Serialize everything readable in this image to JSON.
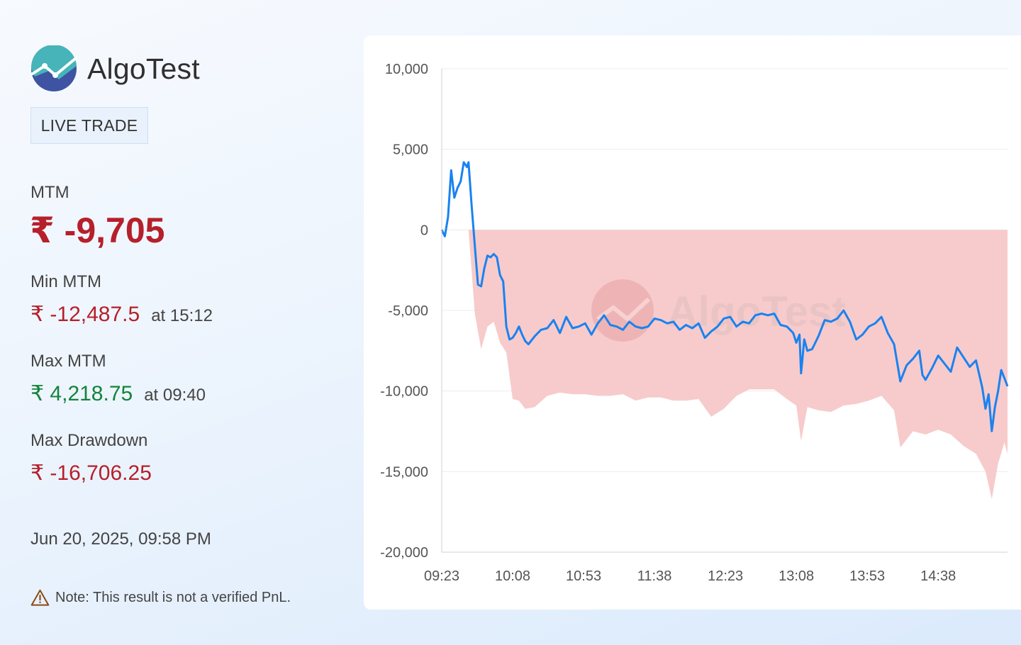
{
  "brand": {
    "name": "AlgoTest"
  },
  "badge": "LIVE TRADE",
  "stats": {
    "mtm_label": "MTM",
    "mtm_value": "₹ -9,705",
    "min_label": "Min MTM",
    "min_value": "₹ -12,487.5",
    "min_time": "at 15:12",
    "max_label": "Max MTM",
    "max_value": "₹ 4,218.75",
    "max_time": "at 09:40",
    "dd_label": "Max Drawdown",
    "dd_value": "₹ -16,706.25"
  },
  "timestamp": "Jun 20, 2025, 09:58 PM",
  "note": "Note: This result is not a verified PnL.",
  "colors": {
    "negative": "#b5202a",
    "positive": "#13843a",
    "mtm_line": "#1a82f0",
    "drawdown_fill": "#f6c5c5"
  },
  "chart_data": {
    "type": "line",
    "title": "",
    "xlabel": "",
    "ylabel": "",
    "x_ticks": [
      "09:23",
      "10:08",
      "10:53",
      "11:38",
      "12:23",
      "13:08",
      "13:53",
      "14:38"
    ],
    "y_ticks": [
      "10,000",
      "5,000",
      "0",
      "-5,000",
      "-10,000",
      "-15,000",
      "-20,000"
    ],
    "ylim": [
      -20000,
      10000
    ],
    "grid": true,
    "watermark": "AlgoTest",
    "series": [
      {
        "type": "line",
        "x": [
          "09:23",
          "09:25",
          "09:27",
          "09:29",
          "09:31",
          "09:33",
          "09:35",
          "09:37",
          "09:39",
          "09:40",
          "09:42",
          "09:44",
          "09:46",
          "09:48",
          "09:50",
          "09:52",
          "09:54",
          "09:56",
          "09:58",
          "10:00",
          "10:02",
          "10:04",
          "10:06",
          "10:08",
          "10:10",
          "10:12",
          "10:14",
          "10:16",
          "10:18",
          "10:22",
          "10:26",
          "10:30",
          "10:34",
          "10:38",
          "10:42",
          "10:46",
          "10:50",
          "10:54",
          "10:58",
          "11:02",
          "11:06",
          "11:10",
          "11:14",
          "11:18",
          "11:22",
          "11:26",
          "11:30",
          "11:34",
          "11:38",
          "11:42",
          "11:46",
          "11:50",
          "11:54",
          "11:58",
          "12:02",
          "12:06",
          "12:10",
          "12:14",
          "12:18",
          "12:22",
          "12:26",
          "12:30",
          "12:34",
          "12:38",
          "12:42",
          "12:46",
          "12:50",
          "12:54",
          "12:58",
          "13:02",
          "13:06",
          "13:08",
          "13:10",
          "13:11",
          "13:13",
          "13:15",
          "13:18",
          "13:22",
          "13:26",
          "13:30",
          "13:34",
          "13:38",
          "13:42",
          "13:46",
          "13:50",
          "13:54",
          "13:58",
          "14:02",
          "14:06",
          "14:10",
          "14:14",
          "14:18",
          "14:22",
          "14:26",
          "14:28",
          "14:30",
          "14:34",
          "14:38",
          "14:42",
          "14:46",
          "14:50",
          "14:54",
          "14:58",
          "15:02",
          "15:06",
          "15:08",
          "15:10",
          "15:12",
          "15:14",
          "15:16",
          "15:18",
          "15:20",
          "15:22"
        ],
        "values": [
          0,
          -400,
          800,
          3700,
          2000,
          2600,
          3000,
          4200,
          3900,
          4200,
          1500,
          -1000,
          -3400,
          -3500,
          -2400,
          -1600,
          -1700,
          -1500,
          -1700,
          -2800,
          -3200,
          -6000,
          -6800,
          -6700,
          -6400,
          -6000,
          -6500,
          -6900,
          -7100,
          -6600,
          -6200,
          -6100,
          -5600,
          -6400,
          -5400,
          -6100,
          -6000,
          -5800,
          -6500,
          -5800,
          -5300,
          -5900,
          -6000,
          -6200,
          -5700,
          -6000,
          -6100,
          -6000,
          -5500,
          -5600,
          -5800,
          -5700,
          -6200,
          -5900,
          -6100,
          -5800,
          -6700,
          -6300,
          -6000,
          -5500,
          -5400,
          -6000,
          -5700,
          -5800,
          -5300,
          -5200,
          -5300,
          -5200,
          -5900,
          -6000,
          -6400,
          -7000,
          -6500,
          -8900,
          -6800,
          -7500,
          -7400,
          -6600,
          -5600,
          -5700,
          -5500,
          -5000,
          -5700,
          -6800,
          -6500,
          -6000,
          -5800,
          -5400,
          -6400,
          -7100,
          -9400,
          -8400,
          -8000,
          -7500,
          -9000,
          -9300,
          -8600,
          -7800,
          -8300,
          -8800,
          -7300,
          -7900,
          -8500,
          -8100,
          -9800,
          -11100,
          -10200,
          -12487,
          -11000,
          -10000,
          -8700,
          -9200,
          -9705
        ]
      },
      {
        "type": "area",
        "name": "",
        "x": [
          "09:23",
          "09:40",
          "09:44",
          "09:48",
          "09:52",
          "09:56",
          "10:00",
          "10:04",
          "10:08",
          "10:12",
          "10:16",
          "10:22",
          "10:30",
          "10:38",
          "10:46",
          "10:54",
          "11:02",
          "11:10",
          "11:18",
          "11:26",
          "11:34",
          "11:42",
          "11:50",
          "11:58",
          "12:06",
          "12:14",
          "12:22",
          "12:30",
          "12:38",
          "12:46",
          "12:54",
          "13:02",
          "13:08",
          "13:11",
          "13:15",
          "13:22",
          "13:30",
          "13:38",
          "13:46",
          "13:54",
          "14:02",
          "14:10",
          "14:14",
          "14:22",
          "14:30",
          "14:38",
          "14:46",
          "14:54",
          "15:02",
          "15:08",
          "15:12",
          "15:16",
          "15:20",
          "15:22"
        ],
        "values": [
          0,
          0,
          -5200,
          -7400,
          -6000,
          -5700,
          -7000,
          -7600,
          -10500,
          -10600,
          -11100,
          -11000,
          -10300,
          -10100,
          -10200,
          -10200,
          -10300,
          -10300,
          -10200,
          -10600,
          -10400,
          -10400,
          -10600,
          -10600,
          -10500,
          -11600,
          -11100,
          -10300,
          -9900,
          -9900,
          -9900,
          -10500,
          -10900,
          -13100,
          -11000,
          -11200,
          -11300,
          -10900,
          -10800,
          -10600,
          -10300,
          -11200,
          -13500,
          -12500,
          -12700,
          -12400,
          -12700,
          -13400,
          -13900,
          -15000,
          -16706,
          -14500,
          -13200,
          -13900
        ]
      }
    ]
  }
}
